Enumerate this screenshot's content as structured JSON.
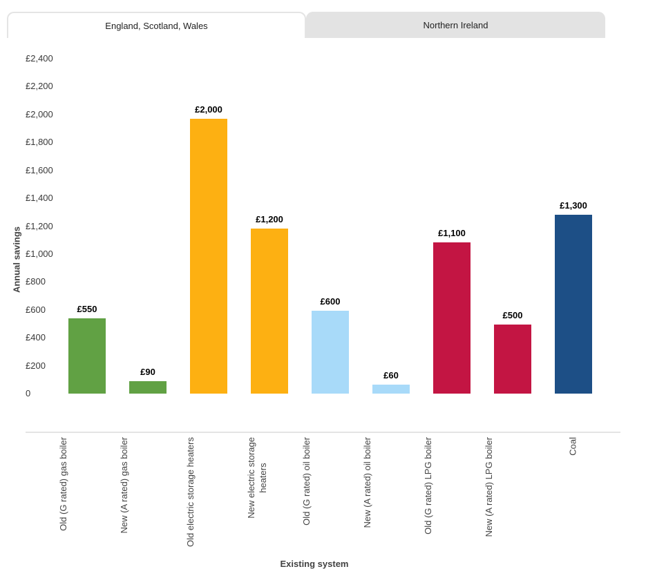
{
  "tabs": [
    {
      "label": "England, Scotland, Wales",
      "active": true
    },
    {
      "label": "Northern Ireland",
      "active": false
    }
  ],
  "chart_data": {
    "type": "bar",
    "title": "",
    "xlabel": "Existing system",
    "ylabel": "Annual savings",
    "ylim": [
      0,
      2400
    ],
    "ytick_step": 200,
    "ytick_labels_top_to_bottom": [
      "£2,400",
      "£2,200",
      "£2,000",
      "£1,800",
      "£1,600",
      "£1,400",
      "£1,200",
      "£1,000",
      "£800",
      "£600",
      "£400",
      "£200",
      "0"
    ],
    "grid": false,
    "legend": "none",
    "categories": [
      "Old (G rated) gas boiler",
      "New (A rated) gas boiler",
      "Old electric storage heaters",
      "New electric storage\nheaters",
      "Old (G rated) oil boiler",
      "New (A rated) oil boiler",
      "Old (G rated) LPG boiler",
      "New (A rated) LPG boiler",
      "Coal"
    ],
    "values": [
      550,
      90,
      2000,
      1200,
      600,
      60,
      1100,
      500,
      1300
    ],
    "value_labels": [
      "£550",
      "£90",
      "£2,000",
      "£1,200",
      "£600",
      "£60",
      "£1,100",
      "£500",
      "£1,300"
    ],
    "bar_heights_gbp_estimated": [
      540,
      90,
      1970,
      1185,
      595,
      65,
      1085,
      495,
      1280
    ],
    "bar_colors": [
      "#61A144",
      "#61A144",
      "#FDB012",
      "#FDB012",
      "#A8DAF9",
      "#A8DAF9",
      "#C31543",
      "#C31543",
      "#1D4F86"
    ]
  },
  "colors": {
    "gas_green": "#61A144",
    "electric_orange": "#FDB012",
    "oil_light_blue": "#A8DAF9",
    "lpg_crimson": "#C31543",
    "coal_navy": "#1D4F86",
    "tab_inactive_bg": "#E3E3E3",
    "tab_border": "#E4E4E4",
    "axis_line": "#E4E4E4",
    "tick_text": "#383838",
    "axis_title_text": "#424242"
  }
}
